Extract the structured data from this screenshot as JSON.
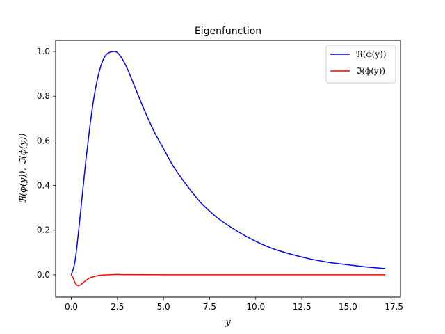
{
  "chart_data": {
    "type": "line",
    "title": "Eigenfunction",
    "xlabel": "y",
    "ylabel": "ℜ(ϕ(y)), ℑ(ϕ(y))",
    "xlim": [
      -0.85,
      17.85
    ],
    "ylim": [
      -0.1,
      1.05
    ],
    "xticks": [
      0,
      2.5,
      5,
      7.5,
      10,
      12.5,
      15,
      17.5
    ],
    "xtick_labels": [
      "0.0",
      "2.5",
      "5.0",
      "7.5",
      "10.0",
      "12.5",
      "15.0",
      "17.5"
    ],
    "yticks": [
      0,
      0.2,
      0.4,
      0.6,
      0.8,
      1.0
    ],
    "ytick_labels": [
      "0.0",
      "0.2",
      "0.4",
      "0.6",
      "0.8",
      "1.0"
    ],
    "grid": false,
    "legend_position": "upper right",
    "series": [
      {
        "name": "ℜ(ϕ(y))",
        "color": "#0000ff",
        "x": [
          0,
          0.2,
          0.4,
          0.6,
          0.8,
          1.0,
          1.2,
          1.4,
          1.6,
          1.8,
          2.0,
          2.2,
          2.35,
          2.5,
          2.7,
          3.0,
          3.5,
          4.0,
          4.5,
          5.0,
          5.5,
          6.0,
          6.5,
          7.0,
          7.5,
          8.0,
          9.0,
          10.0,
          11.0,
          12.0,
          13.0,
          14.0,
          15.0,
          16.0,
          17.0
        ],
        "y": [
          0.0,
          0.06,
          0.2,
          0.36,
          0.52,
          0.66,
          0.78,
          0.87,
          0.935,
          0.975,
          0.993,
          0.999,
          1.0,
          0.995,
          0.975,
          0.93,
          0.83,
          0.73,
          0.64,
          0.565,
          0.49,
          0.43,
          0.375,
          0.325,
          0.285,
          0.25,
          0.195,
          0.15,
          0.115,
          0.09,
          0.07,
          0.055,
          0.045,
          0.035,
          0.028
        ]
      },
      {
        "name": "ℑ(ϕ(y))",
        "color": "#ff0000",
        "x": [
          0,
          0.1,
          0.2,
          0.3,
          0.4,
          0.5,
          0.6,
          0.8,
          1.0,
          1.3,
          1.6,
          2.0,
          2.5,
          3.0,
          5.0,
          10.0,
          17.0
        ],
        "y": [
          0.0,
          -0.015,
          -0.035,
          -0.046,
          -0.048,
          -0.045,
          -0.038,
          -0.025,
          -0.014,
          -0.006,
          -0.002,
          0.0,
          0.0015,
          0.001,
          0.0,
          0.0,
          0.0
        ]
      }
    ]
  }
}
